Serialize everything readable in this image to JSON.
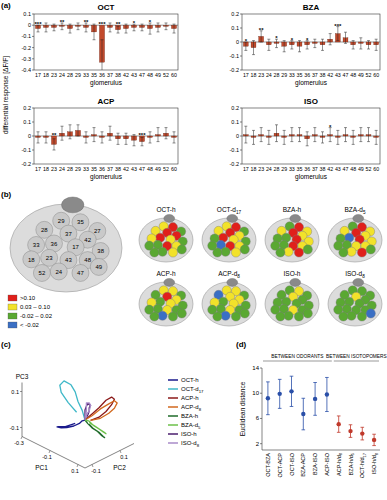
{
  "panel_labels": [
    "(a)",
    "(b)",
    "(c)",
    "(d)"
  ],
  "chart_data": [
    {
      "type": "bar",
      "title": "OCT",
      "ylabel": "differential response [ΔF/F]",
      "xlabel": "glomerulus",
      "categories": [
        "17",
        "18",
        "23",
        "24",
        "28",
        "29",
        "33",
        "35",
        "36",
        "37",
        "38",
        "42",
        "43",
        "47",
        "48",
        "49",
        "52",
        "60"
      ],
      "values": [
        -0.03,
        -0.02,
        -0.02,
        -0.01,
        -0.03,
        -0.01,
        -0.02,
        -0.06,
        -0.33,
        -0.02,
        -0.04,
        -0.03,
        -0.02,
        -0.02,
        -0.03,
        -0.02,
        -0.01,
        -0.03
      ],
      "errors": [
        0.03,
        0.04,
        0.03,
        0.03,
        0.04,
        0.03,
        0.04,
        0.07,
        0.2,
        0.04,
        0.03,
        0.04,
        0.03,
        0.03,
        0.05,
        0.04,
        0.03,
        0.04
      ],
      "significance": [
        "***",
        null,
        null,
        "**",
        null,
        null,
        "**",
        null,
        "***",
        null,
        "**",
        null,
        "*",
        null,
        "*",
        null,
        null,
        null
      ],
      "color": "#c24a2c",
      "ylim": [
        -0.4,
        0.1
      ],
      "yticks": [
        -0.4,
        -0.3,
        -0.2,
        -0.1,
        0,
        0.1
      ]
    },
    {
      "type": "bar",
      "title": "BZA",
      "xlabel": "glomerulus",
      "categories": [
        "17",
        "18",
        "23",
        "24",
        "28",
        "29",
        "33",
        "35",
        "36",
        "37",
        "38",
        "42",
        "43",
        "47",
        "48",
        "49",
        "52",
        "60"
      ],
      "values": [
        -0.03,
        -0.04,
        0.04,
        -0.02,
        -0.01,
        -0.03,
        -0.02,
        -0.03,
        -0.02,
        -0.01,
        -0.02,
        0.02,
        0.06,
        0.03,
        -0.02,
        -0.01,
        -0.02,
        -0.02
      ],
      "errors": [
        0.03,
        0.05,
        0.04,
        0.04,
        0.03,
        0.04,
        0.03,
        0.04,
        0.03,
        0.03,
        0.04,
        0.04,
        0.05,
        0.04,
        0.03,
        0.04,
        0.03,
        0.04
      ],
      "significance": [
        "*",
        null,
        "**",
        null,
        "*",
        null,
        "*",
        null,
        "*",
        null,
        null,
        null,
        "***",
        null,
        null,
        null,
        null,
        null
      ],
      "color": "#c24a2c",
      "ylim": [
        -0.2,
        0.2
      ],
      "yticks": [
        -0.2,
        -0.1,
        0,
        0.1,
        0.2
      ]
    },
    {
      "type": "bar",
      "title": "ACP",
      "xlabel": "glomerulus",
      "categories": [
        "17",
        "18",
        "23",
        "24",
        "28",
        "29",
        "33",
        "35",
        "36",
        "37",
        "38",
        "42",
        "43",
        "47",
        "48",
        "49",
        "52",
        "60"
      ],
      "values": [
        -0.01,
        -0.01,
        -0.06,
        0.02,
        0.03,
        0.04,
        -0.01,
        0.01,
        -0.01,
        0.02,
        -0.02,
        -0.02,
        -0.03,
        -0.04,
        -0.01,
        0.01,
        0.02,
        -0.01
      ],
      "errors": [
        0.04,
        0.04,
        0.04,
        0.05,
        0.05,
        0.04,
        0.04,
        0.05,
        0.04,
        0.05,
        0.04,
        0.04,
        0.04,
        0.03,
        0.04,
        0.05,
        0.04,
        0.04
      ],
      "significance": [
        null,
        null,
        "**",
        null,
        null,
        null,
        null,
        null,
        null,
        null,
        null,
        null,
        null,
        "***",
        null,
        null,
        null,
        null
      ],
      "color": "#c24a2c",
      "ylim": [
        -0.2,
        0.2
      ],
      "yticks": [
        -0.2,
        -0.1,
        0,
        0.1,
        0.2
      ]
    },
    {
      "type": "bar",
      "title": "ISO",
      "xlabel": "glomerulus",
      "categories": [
        "17",
        "18",
        "23",
        "24",
        "28",
        "29",
        "33",
        "35",
        "36",
        "37",
        "38",
        "42",
        "43",
        "47",
        "48",
        "49",
        "52",
        "60"
      ],
      "values": [
        0.01,
        -0.01,
        0.01,
        -0.01,
        0.02,
        -0.01,
        0.01,
        0.01,
        -0.02,
        0.01,
        -0.01,
        0.01,
        -0.01,
        0.01,
        -0.01,
        0.01,
        0.01,
        -0.01
      ],
      "errors": [
        0.06,
        0.05,
        0.05,
        0.05,
        0.06,
        0.05,
        0.05,
        0.05,
        0.05,
        0.05,
        0.04,
        0.05,
        0.05,
        0.05,
        0.05,
        0.05,
        0.05,
        0.05
      ],
      "significance": [
        null,
        null,
        null,
        null,
        null,
        null,
        null,
        null,
        null,
        null,
        null,
        "*",
        null,
        null,
        null,
        null,
        null,
        null
      ],
      "color": "#c24a2c",
      "ylim": [
        -0.2,
        0.2
      ],
      "yticks": [
        -0.2,
        -0.1,
        0,
        0.1,
        0.2
      ]
    },
    {
      "type": "line",
      "xlabel": "PC1",
      "ylabel": "PC2",
      "zlabel": "PC3",
      "xlim": [
        -0.3,
        0.15
      ],
      "ylim": [
        -0.15,
        0.2
      ],
      "zlim": [
        -0.15,
        0.15
      ],
      "xticks": [
        -0.3,
        -0.1,
        0.1
      ],
      "yticks": [
        -0.1,
        0.1
      ],
      "zticks": [
        -0.1,
        0.1
      ],
      "series": [
        {
          "name": "OCT-h",
          "color": "#1a1a8c",
          "x": [
            0,
            -0.03,
            -0.06,
            -0.1,
            -0.14,
            -0.17,
            -0.18,
            -0.15,
            -0.1,
            -0.05
          ],
          "y": [
            0,
            0.01,
            0.02,
            0.02,
            0.01,
            0,
            -0.02,
            -0.04,
            -0.04,
            -0.02
          ],
          "z": [
            0,
            -0.02,
            -0.05,
            -0.08,
            -0.1,
            -0.11,
            -0.1,
            -0.08,
            -0.06,
            -0.03
          ]
        },
        {
          "name": "OCT-d17",
          "color": "#3fb8c8",
          "x": [
            0,
            -0.04,
            -0.08,
            -0.12,
            -0.16,
            -0.2,
            -0.21,
            -0.18,
            -0.12,
            -0.06
          ],
          "y": [
            0,
            0.02,
            0.03,
            0.05,
            0.06,
            0.05,
            0.03,
            0.01,
            0,
            0
          ],
          "z": [
            0,
            0.03,
            0.06,
            0.09,
            0.11,
            0.12,
            0.1,
            0.08,
            0.05,
            0.02
          ]
        },
        {
          "name": "ACP-h",
          "color": "#8b1a1a",
          "x": [
            0,
            0.02,
            0.04,
            0.05,
            0.06,
            0.06,
            0.05,
            0.04,
            0.03,
            0.01
          ],
          "y": [
            0,
            0.03,
            0.06,
            0.1,
            0.13,
            0.15,
            0.14,
            0.11,
            0.07,
            0.03
          ],
          "z": [
            0,
            0.03,
            0.06,
            0.09,
            0.1,
            0.08,
            0.05,
            0.02,
            0,
            -0.01
          ]
        },
        {
          "name": "ACP-d8",
          "color": "#d2691e",
          "x": [
            0,
            0.02,
            0.04,
            0.06,
            0.07,
            0.07,
            0.06,
            0.05,
            0.03,
            0.01
          ],
          "y": [
            0,
            0.03,
            0.07,
            0.11,
            0.14,
            0.16,
            0.15,
            0.12,
            0.08,
            0.03
          ],
          "z": [
            0,
            0.02,
            0.05,
            0.07,
            0.08,
            0.06,
            0.03,
            0.01,
            -0.01,
            -0.01
          ]
        },
        {
          "name": "BZA-h",
          "color": "#1f6b2a",
          "x": [
            0,
            0.01,
            0.03,
            0.05,
            0.07,
            0.08,
            0.08,
            0.06,
            0.04,
            0.02
          ],
          "y": [
            0,
            0.01,
            0.02,
            0.04,
            0.05,
            0.06,
            0.05,
            0.04,
            0.02,
            0.01
          ],
          "z": [
            0,
            -0.02,
            -0.04,
            -0.06,
            -0.08,
            -0.09,
            -0.08,
            -0.06,
            -0.04,
            -0.02
          ]
        },
        {
          "name": "BZA-d5",
          "color": "#6cc04a",
          "x": [
            0,
            0.01,
            0.03,
            0.05,
            0.06,
            0.07,
            0.07,
            0.06,
            0.04,
            0.02
          ],
          "y": [
            0,
            0.02,
            0.03,
            0.05,
            0.07,
            0.08,
            0.07,
            0.05,
            0.03,
            0.01
          ],
          "z": [
            0,
            -0.01,
            -0.03,
            -0.05,
            -0.07,
            -0.08,
            -0.07,
            -0.05,
            -0.03,
            -0.01
          ]
        },
        {
          "name": "ISO-h",
          "color": "#4b1e6e",
          "x": [
            0,
            -0.01,
            -0.02,
            -0.03,
            -0.03,
            -0.02,
            -0.02,
            -0.01,
            0,
            0
          ],
          "y": [
            0,
            0.01,
            0.02,
            0.04,
            0.05,
            0.06,
            0.05,
            0.04,
            0.02,
            0.01
          ],
          "z": [
            0,
            0.02,
            0.04,
            0.05,
            0.06,
            0.05,
            0.04,
            0.03,
            0.02,
            0.01
          ]
        },
        {
          "name": "ISO-d8",
          "color": "#a98bc9",
          "x": [
            0,
            -0.01,
            -0.02,
            -0.03,
            -0.04,
            -0.03,
            -0.02,
            -0.01,
            -0.01,
            0
          ],
          "y": [
            0,
            0.01,
            0.03,
            0.04,
            0.05,
            0.06,
            0.06,
            0.04,
            0.02,
            0.01
          ],
          "z": [
            0,
            0.01,
            0.03,
            0.05,
            0.06,
            0.06,
            0.05,
            0.03,
            0.02,
            0.01
          ]
        }
      ]
    },
    {
      "type": "scatter",
      "ylabel": "Euclidean distance",
      "categories": [
        "OCT-BZA",
        "OCT-ACP",
        "OCT-ISO",
        "BZA-ACP",
        "BZA-ISO",
        "ACP-ISO",
        "ACP-h/d8",
        "BZA-h/d5",
        "OCT-h/d17",
        "ISO-h/d8"
      ],
      "ylim": [
        1,
        14
      ],
      "yticks": [
        2,
        6,
        10,
        14
      ],
      "series": [
        {
          "name": "BETWEEN ODORANTS",
          "color": "#2a4fa8",
          "values": [
            9.2,
            9.9,
            10.3,
            6.7,
            9.1,
            9.8,
            null,
            null,
            null,
            null
          ],
          "errors": [
            2.6,
            2.3,
            2.4,
            2.5,
            2.6,
            2.7,
            null,
            null,
            null,
            null
          ]
        },
        {
          "name": "BETWEEN ISOTOPOMERS",
          "color": "#c0392b",
          "values": [
            null,
            null,
            null,
            null,
            null,
            null,
            5.1,
            4.0,
            3.6,
            2.6
          ],
          "errors": [
            null,
            null,
            null,
            null,
            null,
            null,
            1.3,
            1.0,
            1.0,
            0.9
          ]
        }
      ]
    }
  ],
  "map": {
    "glomeruli": [
      "29",
      "35",
      "27",
      "28",
      "37",
      "42",
      "36",
      "17",
      "33",
      "38",
      "43",
      "48",
      "23",
      "18",
      "24",
      "47",
      "49",
      "52"
    ],
    "legend": [
      {
        "label": ">0.10",
        "color": "#e0201b"
      },
      {
        "label": "0.03 – 0.10",
        "color": "#f2e22a"
      },
      {
        "label": "-0.02 – 0.02",
        "color": "#5aa832"
      },
      {
        "label": "< -0.02",
        "color": "#3a6fc4"
      }
    ],
    "maps": [
      {
        "label": "OCT-h",
        "classes": [
          1,
          0,
          2,
          1,
          0,
          0,
          0,
          1,
          1,
          2,
          0,
          1,
          2,
          2,
          2,
          1,
          2,
          2
        ]
      },
      {
        "label": "OCT-d17",
        "classes": [
          1,
          0,
          2,
          1,
          0,
          1,
          0,
          1,
          2,
          2,
          0,
          1,
          3,
          2,
          2,
          1,
          2,
          2
        ]
      },
      {
        "label": "BZA-h",
        "classes": [
          2,
          0,
          1,
          1,
          0,
          1,
          2,
          0,
          2,
          1,
          0,
          1,
          2,
          2,
          1,
          0,
          2,
          2
        ]
      },
      {
        "label": "BZA-d5",
        "classes": [
          2,
          0,
          1,
          1,
          0,
          1,
          3,
          0,
          2,
          1,
          1,
          1,
          2,
          2,
          1,
          0,
          2,
          2
        ]
      },
      {
        "label": "ACP-h",
        "classes": [
          1,
          1,
          2,
          2,
          0,
          1,
          2,
          1,
          1,
          2,
          1,
          2,
          2,
          2,
          3,
          2,
          2,
          2
        ]
      },
      {
        "label": "ACP-d8",
        "classes": [
          1,
          1,
          2,
          3,
          1,
          1,
          2,
          1,
          1,
          2,
          1,
          2,
          2,
          2,
          3,
          2,
          2,
          2
        ]
      },
      {
        "label": "ISO-h",
        "classes": [
          2,
          1,
          2,
          2,
          1,
          2,
          2,
          2,
          2,
          2,
          1,
          2,
          2,
          2,
          2,
          2,
          2,
          2
        ]
      },
      {
        "label": "ISO-d8",
        "classes": [
          2,
          2,
          2,
          2,
          1,
          2,
          2,
          2,
          2,
          2,
          2,
          2,
          2,
          2,
          2,
          2,
          3,
          2
        ]
      }
    ]
  }
}
